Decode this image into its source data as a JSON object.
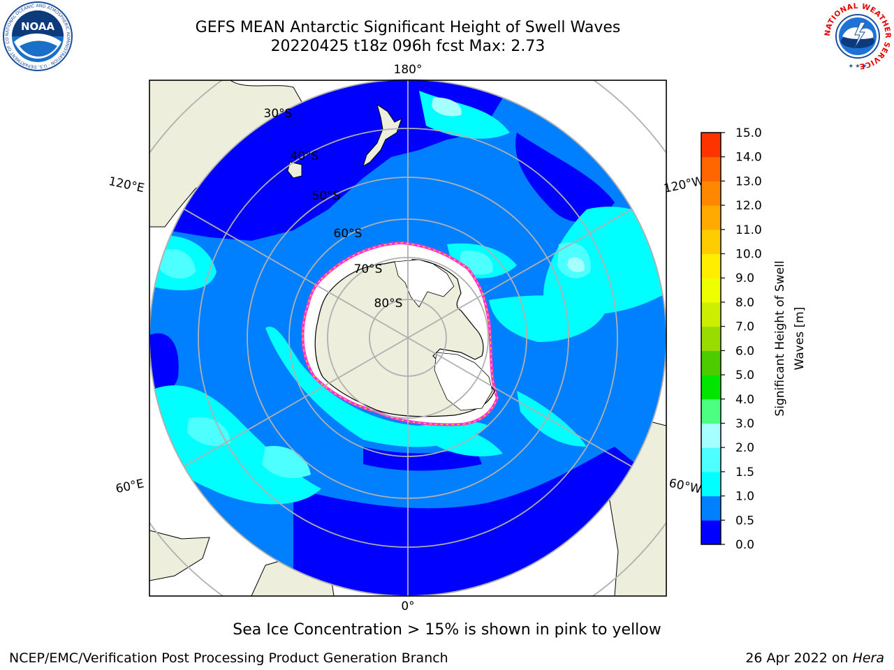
{
  "header": {
    "title_line1": "GEFS MEAN Antarctic Significant Height of Swell Waves",
    "title_line2": "20220425 t18z 096h fcst   Max: 2.73"
  },
  "logos": {
    "left": {
      "name": "noaa-logo",
      "text": "NOAA",
      "ring_text": "NATIONAL OCEANIC AND ATMOSPHERIC ADMINISTRATION · U.S. DEPARTMENT OF COMMERCE"
    },
    "right": {
      "name": "nws-logo",
      "ring_text": "NATIONAL WEATHER SERVICE"
    }
  },
  "map": {
    "projection": "south-polar-stereographic",
    "longitude_labels": {
      "top": "180°",
      "bottom": "0°",
      "left_upper": "120°E",
      "left_lower": "60°E",
      "right_upper": "120°W",
      "right_lower": "60°W"
    },
    "latitude_labels": [
      "30°S",
      "40°S",
      "50°S",
      "60°S",
      "70°S",
      "80°S"
    ],
    "colors": {
      "land": "#eeeedc",
      "ice": "#ffffff",
      "ice_edge_inner": "#ff33cc",
      "ice_edge_outer": "#ffcc33",
      "grid": "#b0b0b0",
      "coast": "#000000"
    }
  },
  "colorbar": {
    "label": "Significant Height of Swell Waves [m]",
    "label_line1": "Significant Height of Swell",
    "label_line2": "Waves [m]",
    "ticks": [
      "0.0",
      "0.5",
      "1.0",
      "1.5",
      "2.0",
      "3.0",
      "4.0",
      "5.0",
      "6.0",
      "7.0",
      "8.0",
      "9.0",
      "10.0",
      "11.0",
      "12.0",
      "13.0",
      "14.0",
      "15.0"
    ],
    "colors": [
      "#0000ff",
      "#0080ff",
      "#00ffff",
      "#4dffff",
      "#a6ffff",
      "#4dff80",
      "#00e600",
      "#4dcc00",
      "#99dd00",
      "#ccee00",
      "#eeff00",
      "#ffee00",
      "#ffcc00",
      "#ffaa00",
      "#ff8800",
      "#ff6600",
      "#ff3300"
    ]
  },
  "chart_data": {
    "type": "heatmap",
    "variable": "Significant Height of Swell Waves",
    "units": "m",
    "date": "20220425",
    "cycle": "t18z",
    "forecast_hour": "096h",
    "max": 2.73,
    "colorbar_range": [
      0,
      15
    ],
    "colorbar_ticks": [
      0.0,
      0.5,
      1.0,
      1.5,
      2.0,
      3.0,
      4.0,
      5.0,
      6.0,
      7.0,
      8.0,
      9.0,
      10.0,
      11.0,
      12.0,
      13.0,
      14.0,
      15.0
    ]
  },
  "caption": "Sea Ice Concentration > 15% is shown in pink to yellow",
  "footer": {
    "left": "NCEP/EMC/Verification Post Processing Product Generation Branch",
    "right_prefix": "26 Apr 2022 on ",
    "right_host": "Hera"
  }
}
